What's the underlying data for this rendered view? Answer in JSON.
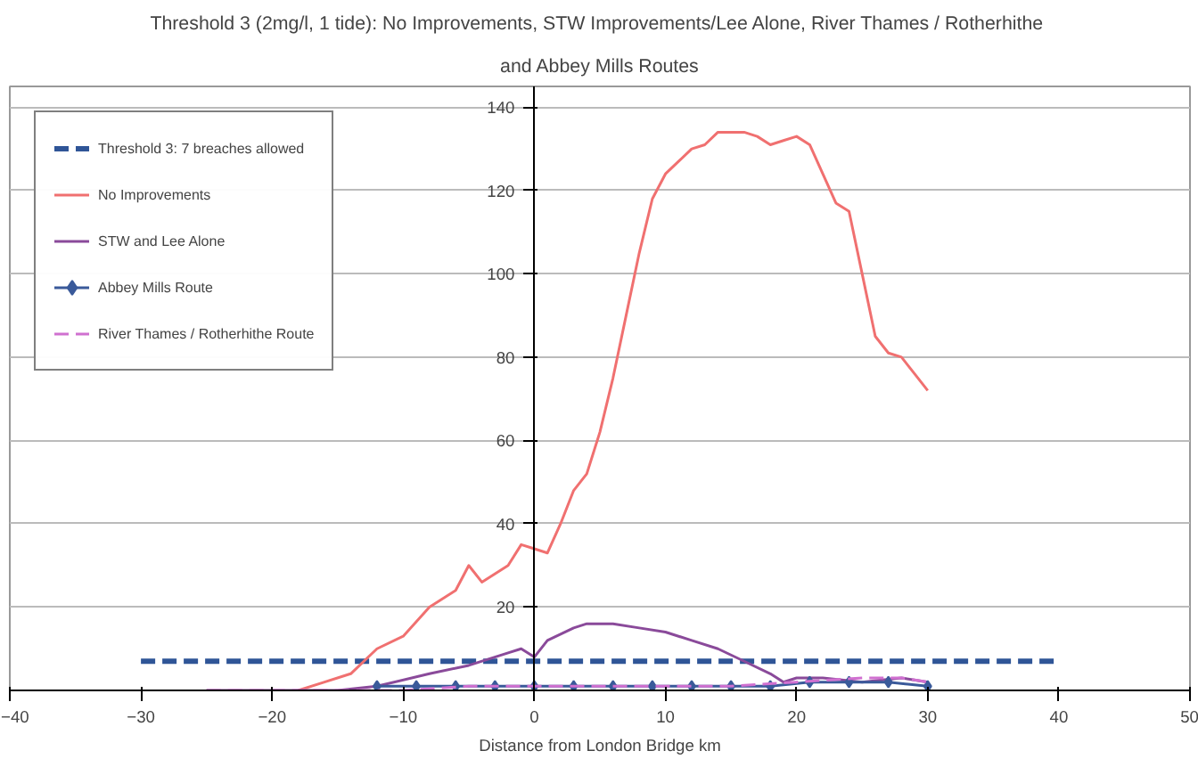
{
  "chart_data": {
    "type": "line",
    "title": "Threshold 3 (2mg/l, 1 tide): No Improvements, STW Improvements/Lee Alone, River Thames /  Rotherhithe",
    "subtitle": "and Abbey Mills Routes",
    "xlabel": "Distance from London Bridge km",
    "xlim": [
      -40,
      50
    ],
    "xticks": [
      -40,
      -30,
      -20,
      -10,
      0,
      10,
      20,
      30,
      40,
      50
    ],
    "ylim": [
      0,
      145
    ],
    "yticks": [
      {
        "value": 0,
        "label": null
      },
      20,
      40,
      60,
      80,
      100,
      120,
      140
    ],
    "grid": "y",
    "legend": "top left",
    "series": [
      {
        "name": "Threshold 3: 7 breaches allowed",
        "color": "#2f5597",
        "line_style": "dashed",
        "marker": "none",
        "x": [
          -30,
          40
        ],
        "values": [
          7,
          7
        ]
      },
      {
        "name": "No Improvements",
        "color": "#f07070",
        "line_style": "solid",
        "marker": "none",
        "x": [
          -18,
          -16,
          -14,
          -12,
          -10,
          -8,
          -6,
          -5,
          -4,
          -2,
          -1,
          0,
          1,
          2,
          3,
          4,
          5,
          6,
          7,
          8,
          9,
          10,
          11,
          12,
          13,
          14,
          15,
          16,
          17,
          18,
          19,
          20,
          21,
          22,
          23,
          24,
          25,
          26,
          27,
          28,
          29,
          30
        ],
        "values": [
          0,
          2,
          4,
          10,
          13,
          20,
          24,
          30,
          26,
          30,
          35,
          34,
          33,
          40,
          48,
          52,
          62,
          75,
          90,
          105,
          118,
          124,
          127,
          130,
          131,
          134,
          134,
          134,
          133,
          131,
          132,
          133,
          131,
          124,
          117,
          115,
          100,
          85,
          81,
          80,
          76,
          72
        ]
      },
      {
        "name": "STW and Lee Alone",
        "color": "#8a4a9a",
        "line_style": "solid",
        "marker": "none",
        "x": [
          -25,
          -15,
          -12,
          -8,
          -5,
          -2,
          -1,
          0,
          1,
          3,
          4,
          6,
          8,
          10,
          12,
          14,
          16,
          18,
          19,
          20,
          22,
          25,
          28,
          30
        ],
        "values": [
          0,
          0,
          1,
          4,
          6,
          9,
          10,
          8,
          12,
          15,
          16,
          16,
          15,
          14,
          12,
          10,
          7,
          4,
          2,
          3,
          3,
          2,
          3,
          2
        ]
      },
      {
        "name": "Abbey Mills Route",
        "color": "#3a5a9a",
        "line_style": "solid",
        "marker": "diamond",
        "x": [
          -12,
          -9,
          -6,
          -3,
          0,
          3,
          6,
          9,
          12,
          15,
          18,
          21,
          24,
          27,
          30
        ],
        "values": [
          1,
          1,
          1,
          1,
          1,
          1,
          1,
          1,
          1,
          1,
          1,
          2,
          2,
          2,
          1
        ]
      },
      {
        "name": "River Thames / Rotherhithe Route",
        "color": "#d070d0",
        "line_style": "dashed",
        "marker": "none",
        "x": [
          -25,
          -20,
          -15,
          -10,
          -5,
          0,
          5,
          10,
          15,
          20,
          25,
          28,
          30
        ],
        "values": [
          0,
          0,
          0,
          0,
          1,
          1,
          1,
          1,
          1,
          2,
          3,
          3,
          2
        ]
      }
    ]
  }
}
